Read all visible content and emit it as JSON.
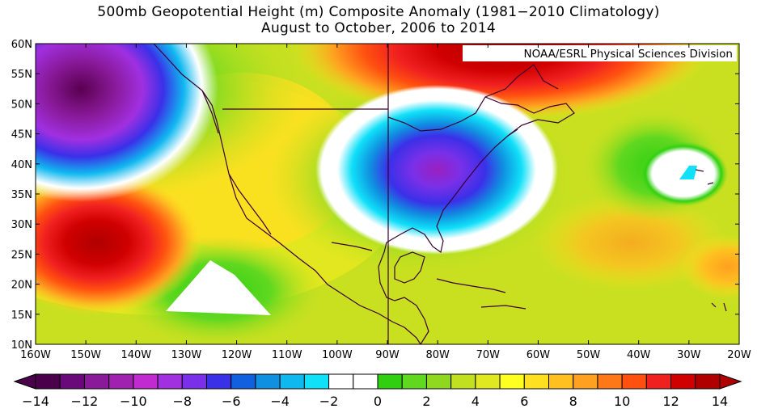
{
  "title_line1": "500mb Geopotential Height (m) Composite Anomaly (1981−2010 Climatology)",
  "title_line2": "August to October, 2006 to 2014",
  "credit": "NOAA/ESRL Physical Sciences Division",
  "lat_labels": [
    "60N",
    "55N",
    "50N",
    "45N",
    "40N",
    "35N",
    "30N",
    "25N",
    "20N",
    "15N",
    "10N"
  ],
  "lon_labels": [
    "160W",
    "150W",
    "140W",
    "130W",
    "120W",
    "110W",
    "100W",
    "90W",
    "80W",
    "70W",
    "60W",
    "50W",
    "40W",
    "30W",
    "20W"
  ],
  "colorbar": {
    "min": -14,
    "max": 14,
    "step": 1,
    "labels": [
      "−14",
      "−12",
      "−10",
      "−8",
      "−6",
      "−4",
      "−2",
      "0",
      "2",
      "4",
      "6",
      "8",
      "10",
      "12",
      "14"
    ],
    "colors": [
      "#4a004a",
      "#6a0a7a",
      "#8a1a9a",
      "#a020b0",
      "#c02ad0",
      "#a030e0",
      "#7a30e8",
      "#3a30e8",
      "#1060e0",
      "#1090e0",
      "#10b8f0",
      "#10e0f8",
      "#ffffff",
      "#ffffff",
      "#30d010",
      "#60d820",
      "#90d820",
      "#c0e020",
      "#e0e820",
      "#ffff20",
      "#ffe020",
      "#ffc020",
      "#ffa020",
      "#ff7818",
      "#ff5010",
      "#f02020",
      "#d00000",
      "#b00000"
    ]
  },
  "map_data": {
    "region": {
      "lon_range": [
        -160,
        -20
      ],
      "lat_range": [
        10,
        60
      ]
    },
    "variable": "500mb geopotential height anomaly (m)",
    "features": [
      {
        "name": "negative-anomaly-northeast-pacific",
        "center": [
          -150,
          53
        ],
        "min_value": -12
      },
      {
        "name": "negative-anomaly-eastern-us",
        "center": [
          -83,
          40
        ],
        "min_value": -9
      },
      {
        "name": "positive-anomaly-subtropical-pacific",
        "center": [
          -155,
          28
        ],
        "max_value": 12
      },
      {
        "name": "positive-anomaly-north-canada",
        "center": [
          -90,
          58
        ],
        "max_value": 12
      },
      {
        "name": "weak-positive-atlantic",
        "center": [
          -30,
          38
        ],
        "max_value": 1
      }
    ]
  }
}
